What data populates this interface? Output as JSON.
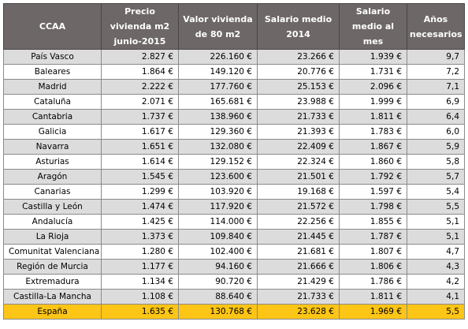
{
  "headers": [
    "CCAA",
    "Precio vivienda m2 junio-2015",
    "Valor vivienda de 80 m2",
    "Salario medio 2014",
    "Salario medio al mes",
    "Años necesarios"
  ],
  "rows": [
    [
      "País Vasco",
      "2.827 €",
      "226.160 €",
      "23.266 €",
      "1.939 €",
      "9,7"
    ],
    [
      "Baleares",
      "1.864 €",
      "149.120 €",
      "20.776 €",
      "1.731 €",
      "7,2"
    ],
    [
      "Madrid",
      "2.222 €",
      "177.760 €",
      "25.153 €",
      "2.096 €",
      "7,1"
    ],
    [
      "Cataluña",
      "2.071 €",
      "165.681 €",
      "23.988 €",
      "1.999 €",
      "6,9"
    ],
    [
      "Cantabria",
      "1.737 €",
      "138.960 €",
      "21.733 €",
      "1.811 €",
      "6,4"
    ],
    [
      "Galicia",
      "1.617 €",
      "129.360 €",
      "21.393 €",
      "1.783 €",
      "6,0"
    ],
    [
      "Navarra",
      "1.651 €",
      "132.080 €",
      "22.409 €",
      "1.867 €",
      "5,9"
    ],
    [
      "Asturias",
      "1.614 €",
      "129.152 €",
      "22.324 €",
      "1.860 €",
      "5,8"
    ],
    [
      "Aragón",
      "1.545 €",
      "123.600 €",
      "21.501 €",
      "1.792 €",
      "5,7"
    ],
    [
      "Canarias",
      "1.299 €",
      "103.920 €",
      "19.168 €",
      "1.597 €",
      "5,4"
    ],
    [
      "Castilla y León",
      "1.474 €",
      "117.920 €",
      "21.572 €",
      "1.798 €",
      "5,5"
    ],
    [
      "Andalucía",
      "1.425 €",
      "114.000 €",
      "22.256 €",
      "1.855 €",
      "5,1"
    ],
    [
      "La Rioja",
      "1.373 €",
      "109.840 €",
      "21.445 €",
      "1.787 €",
      "5,1"
    ],
    [
      "Comunitat Valenciana",
      "1.280 €",
      "102.400 €",
      "21.681 €",
      "1.807 €",
      "4,7"
    ],
    [
      "Región de Murcia",
      "1.177 €",
      "94.160 €",
      "21.666 €",
      "1.806 €",
      "4,3"
    ],
    [
      "Extremadura",
      "1.134 €",
      "90.720 €",
      "21.429 €",
      "1.786 €",
      "4,2"
    ],
    [
      "Castilla-La Mancha",
      "1.108 €",
      "88.640 €",
      "21.733 €",
      "1.811 €",
      "4,1"
    ]
  ],
  "total": [
    "España",
    "1.635 €",
    "130.768 €",
    "23.628 €",
    "1.969 €",
    "5,5"
  ],
  "colors": {
    "header_bg": "#6d6767",
    "row_alt_bg": "#dcdcdc",
    "total_bg": "#fdc515"
  }
}
